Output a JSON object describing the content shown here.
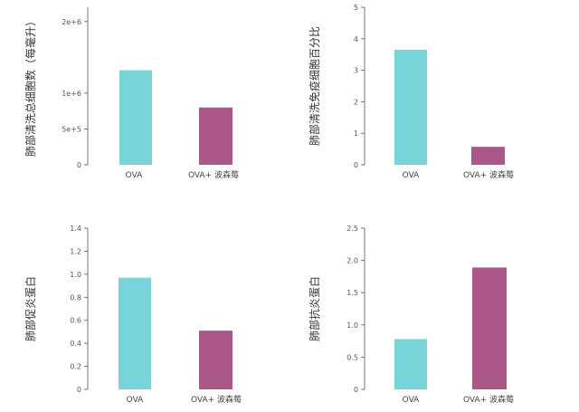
{
  "colors": {
    "ova": "#6dd2d6",
    "treat": "#a54a7e",
    "axis": "#555555"
  },
  "chart_data": [
    {
      "type": "bar",
      "ylabel": "肺部清洗总细胞数（每毫升）",
      "categories": [
        "OVA",
        "OVA+ 波森莓"
      ],
      "values": [
        1320000.0,
        800000.0
      ],
      "ylim": [
        0,
        2200000.0
      ],
      "ticks": [
        0,
        500000.0,
        1000000.0,
        2000000.0
      ],
      "tick_labels": [
        "0",
        "5e+5",
        "1e+6",
        "2e+6"
      ]
    },
    {
      "type": "bar",
      "ylabel": "肺部清洗免疫细胞百分比",
      "categories": [
        "OVA",
        "OVA+ 波森莓"
      ],
      "values": [
        3.65,
        0.57
      ],
      "ylim": [
        0,
        5.0
      ],
      "ticks": [
        0,
        1,
        2,
        3,
        4,
        5
      ],
      "tick_labels": [
        "0",
        "1",
        "2",
        "3",
        "4",
        "5"
      ]
    },
    {
      "type": "bar",
      "ylabel": "肺部促炎蛋白",
      "categories": [
        "OVA",
        "OVA+ 波森莓"
      ],
      "values": [
        0.97,
        0.51
      ],
      "ylim": [
        0,
        1.4
      ],
      "ticks": [
        0,
        0.2,
        0.4,
        0.6,
        0.8,
        1.0,
        1.2,
        1.4
      ],
      "tick_labels": [
        "0",
        "0.2",
        "0.4",
        "0.6",
        "0.8",
        "1.0",
        "1.2",
        "1.4"
      ]
    },
    {
      "type": "bar",
      "ylabel": "肺部抗炎蛋白",
      "categories": [
        "OVA",
        "OVA+ 波森莓"
      ],
      "values": [
        0.78,
        1.89
      ],
      "ylim": [
        0,
        2.5
      ],
      "ticks": [
        0,
        0.5,
        1.0,
        1.5,
        2.0,
        2.5
      ],
      "tick_labels": [
        "0",
        "0.5",
        "1.0",
        "1.5",
        "2.0",
        "2.5"
      ]
    }
  ]
}
